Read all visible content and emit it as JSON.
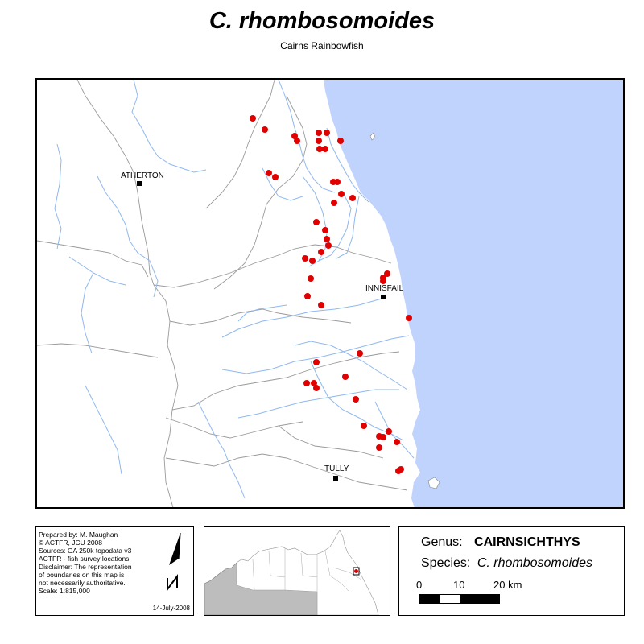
{
  "header": {
    "title": "C. rhombosomoides",
    "subtitle": "Cairns Rainbowfish"
  },
  "map": {
    "towns": [
      {
        "name": "ATHERTON"
      },
      {
        "name": "INNISFAIL"
      },
      {
        "name": "TULLY"
      }
    ],
    "colors": {
      "sea": "#bfd3fd",
      "rivers": "#8fb8ef",
      "boundaries": "#9a9a9a",
      "records": "#e00000"
    }
  },
  "notes": {
    "lines": [
      "Prepared by: M. Maughan",
      "© ACTFR, JCU 2008",
      "Sources: GA 250k topodata v3",
      "ACTFR - fish survey locations",
      "Disclaimer: The representation",
      "of boundaries on this map is",
      "not necessarily authoritative.",
      "Scale: 1:815,000"
    ],
    "date": "14-July-2008",
    "north_arrow": "north-arrow-icon"
  },
  "legend": {
    "genus_label": "Genus:",
    "genus_value": "CAIRNSICHTHYS",
    "species_label": "Species:",
    "species_value": "C. rhombosomoides",
    "scale_ticks": [
      "0",
      "10",
      "20 km"
    ]
  }
}
